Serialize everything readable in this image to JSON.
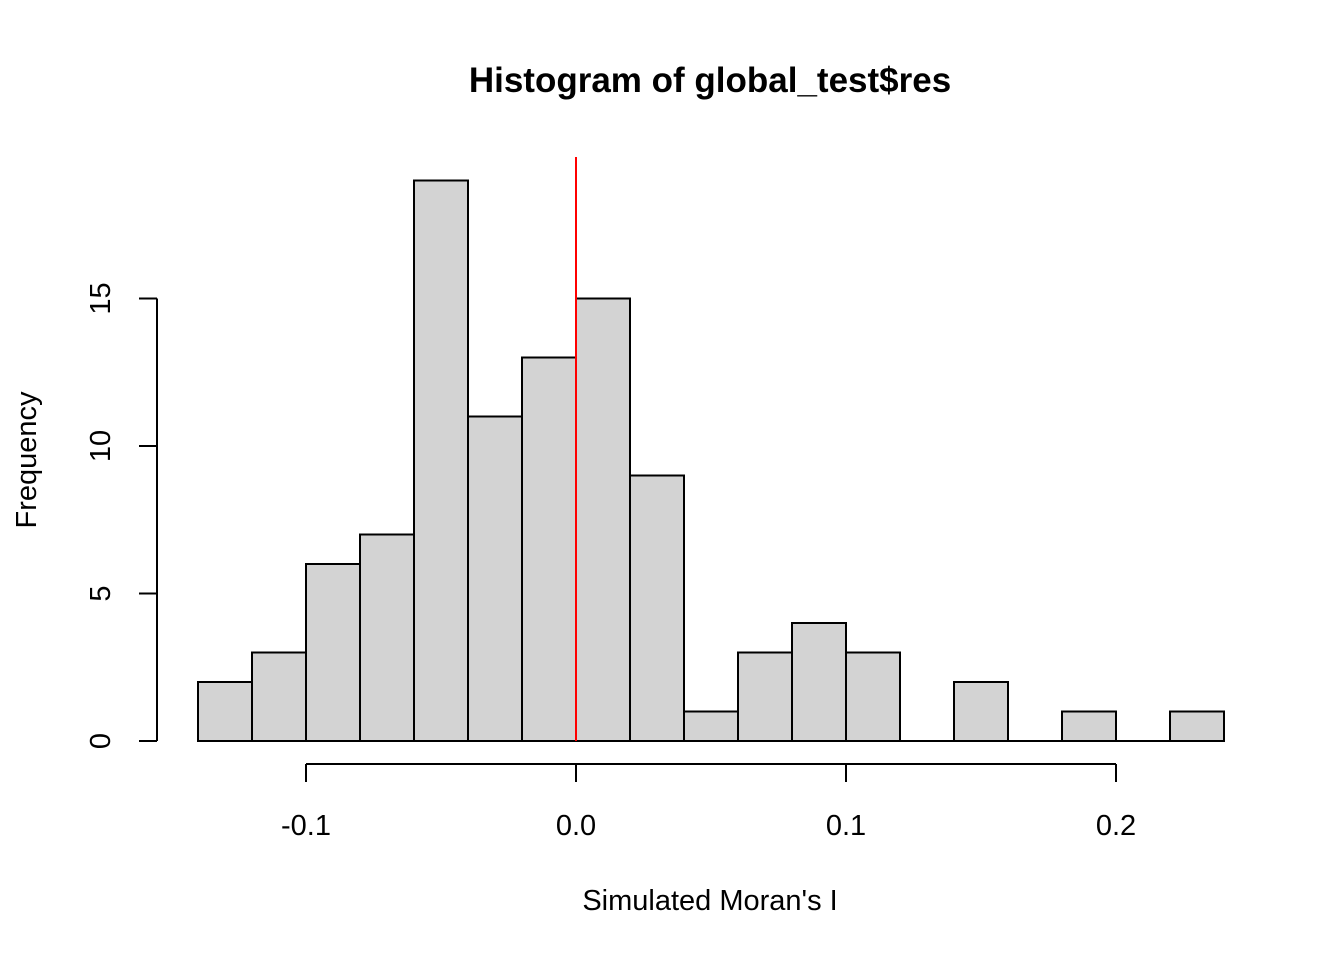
{
  "chart_data": {
    "type": "bar",
    "title": "Histogram of global_test$res",
    "xlabel": "Simulated Moran's I",
    "ylabel": "Frequency",
    "xlim": [
      -0.14,
      0.24
    ],
    "ylim": [
      0,
      20
    ],
    "x_ticks": [
      -0.1,
      0.0,
      0.1,
      0.2
    ],
    "x_tick_labels": [
      "-0.1",
      "0.0",
      "0.1",
      "0.2"
    ],
    "y_ticks": [
      0,
      5,
      10,
      15
    ],
    "y_tick_labels": [
      "0",
      "5",
      "10",
      "15"
    ],
    "bins": [
      {
        "x0": -0.14,
        "x1": -0.12,
        "count": 2
      },
      {
        "x0": -0.12,
        "x1": -0.1,
        "count": 3
      },
      {
        "x0": -0.1,
        "x1": -0.08,
        "count": 6
      },
      {
        "x0": -0.08,
        "x1": -0.06,
        "count": 7
      },
      {
        "x0": -0.06,
        "x1": -0.04,
        "count": 19
      },
      {
        "x0": -0.04,
        "x1": -0.02,
        "count": 11
      },
      {
        "x0": -0.02,
        "x1": 0.0,
        "count": 13
      },
      {
        "x0": 0.0,
        "x1": 0.02,
        "count": 15
      },
      {
        "x0": 0.02,
        "x1": 0.04,
        "count": 9
      },
      {
        "x0": 0.04,
        "x1": 0.06,
        "count": 1
      },
      {
        "x0": 0.06,
        "x1": 0.08,
        "count": 3
      },
      {
        "x0": 0.08,
        "x1": 0.1,
        "count": 4
      },
      {
        "x0": 0.1,
        "x1": 0.12,
        "count": 3
      },
      {
        "x0": 0.12,
        "x1": 0.14,
        "count": 0
      },
      {
        "x0": 0.14,
        "x1": 0.16,
        "count": 2
      },
      {
        "x0": 0.16,
        "x1": 0.18,
        "count": 0
      },
      {
        "x0": 0.18,
        "x1": 0.2,
        "count": 1
      },
      {
        "x0": 0.2,
        "x1": 0.22,
        "count": 0
      },
      {
        "x0": 0.22,
        "x1": 0.24,
        "count": 1
      }
    ],
    "vline": {
      "x": 0.0,
      "color": "#ff0000"
    },
    "bar_fill": "#d3d3d3",
    "bar_stroke": "#000000",
    "grid": false,
    "legend": "none"
  }
}
